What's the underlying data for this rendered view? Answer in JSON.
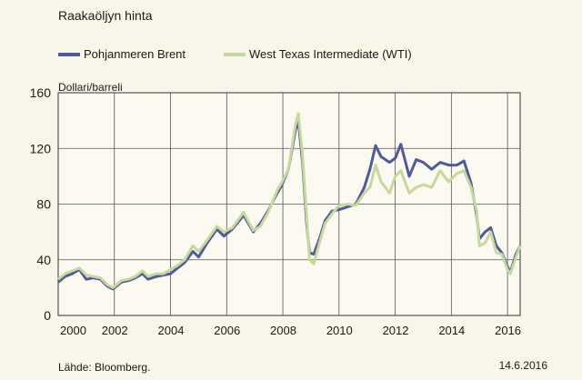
{
  "title": "Raakaöljyn hinta",
  "source": "Lähde: Bloomberg.",
  "date": "14.6.2016",
  "colors": {
    "brent": "#4f5a9e",
    "wti": "#c6d99a",
    "grid": "#555555",
    "background": "#f8f5e9"
  },
  "chart_data": {
    "type": "line",
    "title": "Raakaöljyn hinta",
    "ylabel": "Dollari/barreli",
    "xlabel": "",
    "xlim": [
      2000,
      2016.45
    ],
    "ylim": [
      0,
      160
    ],
    "yticks": [
      0,
      40,
      80,
      120,
      160
    ],
    "xticks": [
      2000,
      2002,
      2004,
      2006,
      2008,
      2010,
      2012,
      2014,
      2016
    ],
    "grid": true,
    "legend_position": "top",
    "series": [
      {
        "name": "Pohjanmeren Brent",
        "x": [
          2000.0,
          2000.25,
          2000.5,
          2000.75,
          2001.0,
          2001.25,
          2001.5,
          2001.75,
          2001.95,
          2002.25,
          2002.5,
          2002.75,
          2003.0,
          2003.2,
          2003.5,
          2003.75,
          2004.0,
          2004.25,
          2004.5,
          2004.8,
          2005.0,
          2005.3,
          2005.65,
          2005.9,
          2006.2,
          2006.6,
          2006.95,
          2007.2,
          2007.5,
          2007.8,
          2007.95,
          2008.2,
          2008.45,
          2008.55,
          2008.7,
          2008.85,
          2008.95,
          2009.1,
          2009.3,
          2009.5,
          2009.75,
          2010.0,
          2010.3,
          2010.6,
          2010.9,
          2011.1,
          2011.3,
          2011.5,
          2011.8,
          2012.0,
          2012.2,
          2012.5,
          2012.75,
          2013.0,
          2013.3,
          2013.6,
          2013.9,
          2014.2,
          2014.45,
          2014.7,
          2014.9,
          2015.0,
          2015.2,
          2015.4,
          2015.6,
          2015.8,
          2016.0,
          2016.1,
          2016.3,
          2016.45
        ],
        "y": [
          24,
          28,
          30,
          33,
          26,
          27,
          26,
          21,
          19,
          24,
          25,
          27,
          30,
          26,
          28,
          29,
          30,
          34,
          38,
          46,
          42,
          52,
          62,
          57,
          62,
          72,
          60,
          66,
          76,
          88,
          93,
          105,
          133,
          140,
          110,
          65,
          45,
          44,
          55,
          68,
          75,
          76,
          78,
          80,
          92,
          105,
          122,
          114,
          110,
          113,
          123,
          100,
          112,
          110,
          105,
          110,
          108,
          108,
          111,
          95,
          72,
          55,
          60,
          63,
          50,
          45,
          35,
          31,
          44,
          50
        ]
      },
      {
        "name": "West Texas Intermediate (WTI)",
        "x": [
          2000.0,
          2000.25,
          2000.5,
          2000.75,
          2001.0,
          2001.25,
          2001.5,
          2001.75,
          2001.95,
          2002.25,
          2002.5,
          2002.75,
          2003.0,
          2003.2,
          2003.5,
          2003.75,
          2004.0,
          2004.25,
          2004.5,
          2004.8,
          2005.0,
          2005.3,
          2005.65,
          2005.9,
          2006.2,
          2006.6,
          2006.95,
          2007.2,
          2007.5,
          2007.8,
          2007.95,
          2008.2,
          2008.45,
          2008.55,
          2008.7,
          2008.85,
          2008.95,
          2009.1,
          2009.3,
          2009.5,
          2009.75,
          2010.0,
          2010.3,
          2010.6,
          2010.9,
          2011.1,
          2011.3,
          2011.5,
          2011.8,
          2012.0,
          2012.2,
          2012.5,
          2012.75,
          2013.0,
          2013.3,
          2013.6,
          2013.9,
          2014.2,
          2014.45,
          2014.7,
          2014.9,
          2015.0,
          2015.2,
          2015.4,
          2015.6,
          2015.8,
          2016.0,
          2016.1,
          2016.3,
          2016.45
        ],
        "y": [
          26,
          30,
          32,
          34,
          29,
          28,
          27,
          22,
          20,
          25,
          26,
          28,
          32,
          28,
          30,
          30,
          33,
          36,
          40,
          50,
          46,
          54,
          64,
          60,
          63,
          74,
          61,
          64,
          75,
          90,
          95,
          105,
          137,
          145,
          115,
          70,
          40,
          37,
          52,
          66,
          73,
          79,
          80,
          79,
          88,
          92,
          108,
          96,
          88,
          100,
          104,
          88,
          92,
          94,
          92,
          104,
          96,
          102,
          104,
          92,
          75,
          50,
          52,
          60,
          45,
          44,
          33,
          30,
          42,
          50
        ]
      }
    ]
  }
}
